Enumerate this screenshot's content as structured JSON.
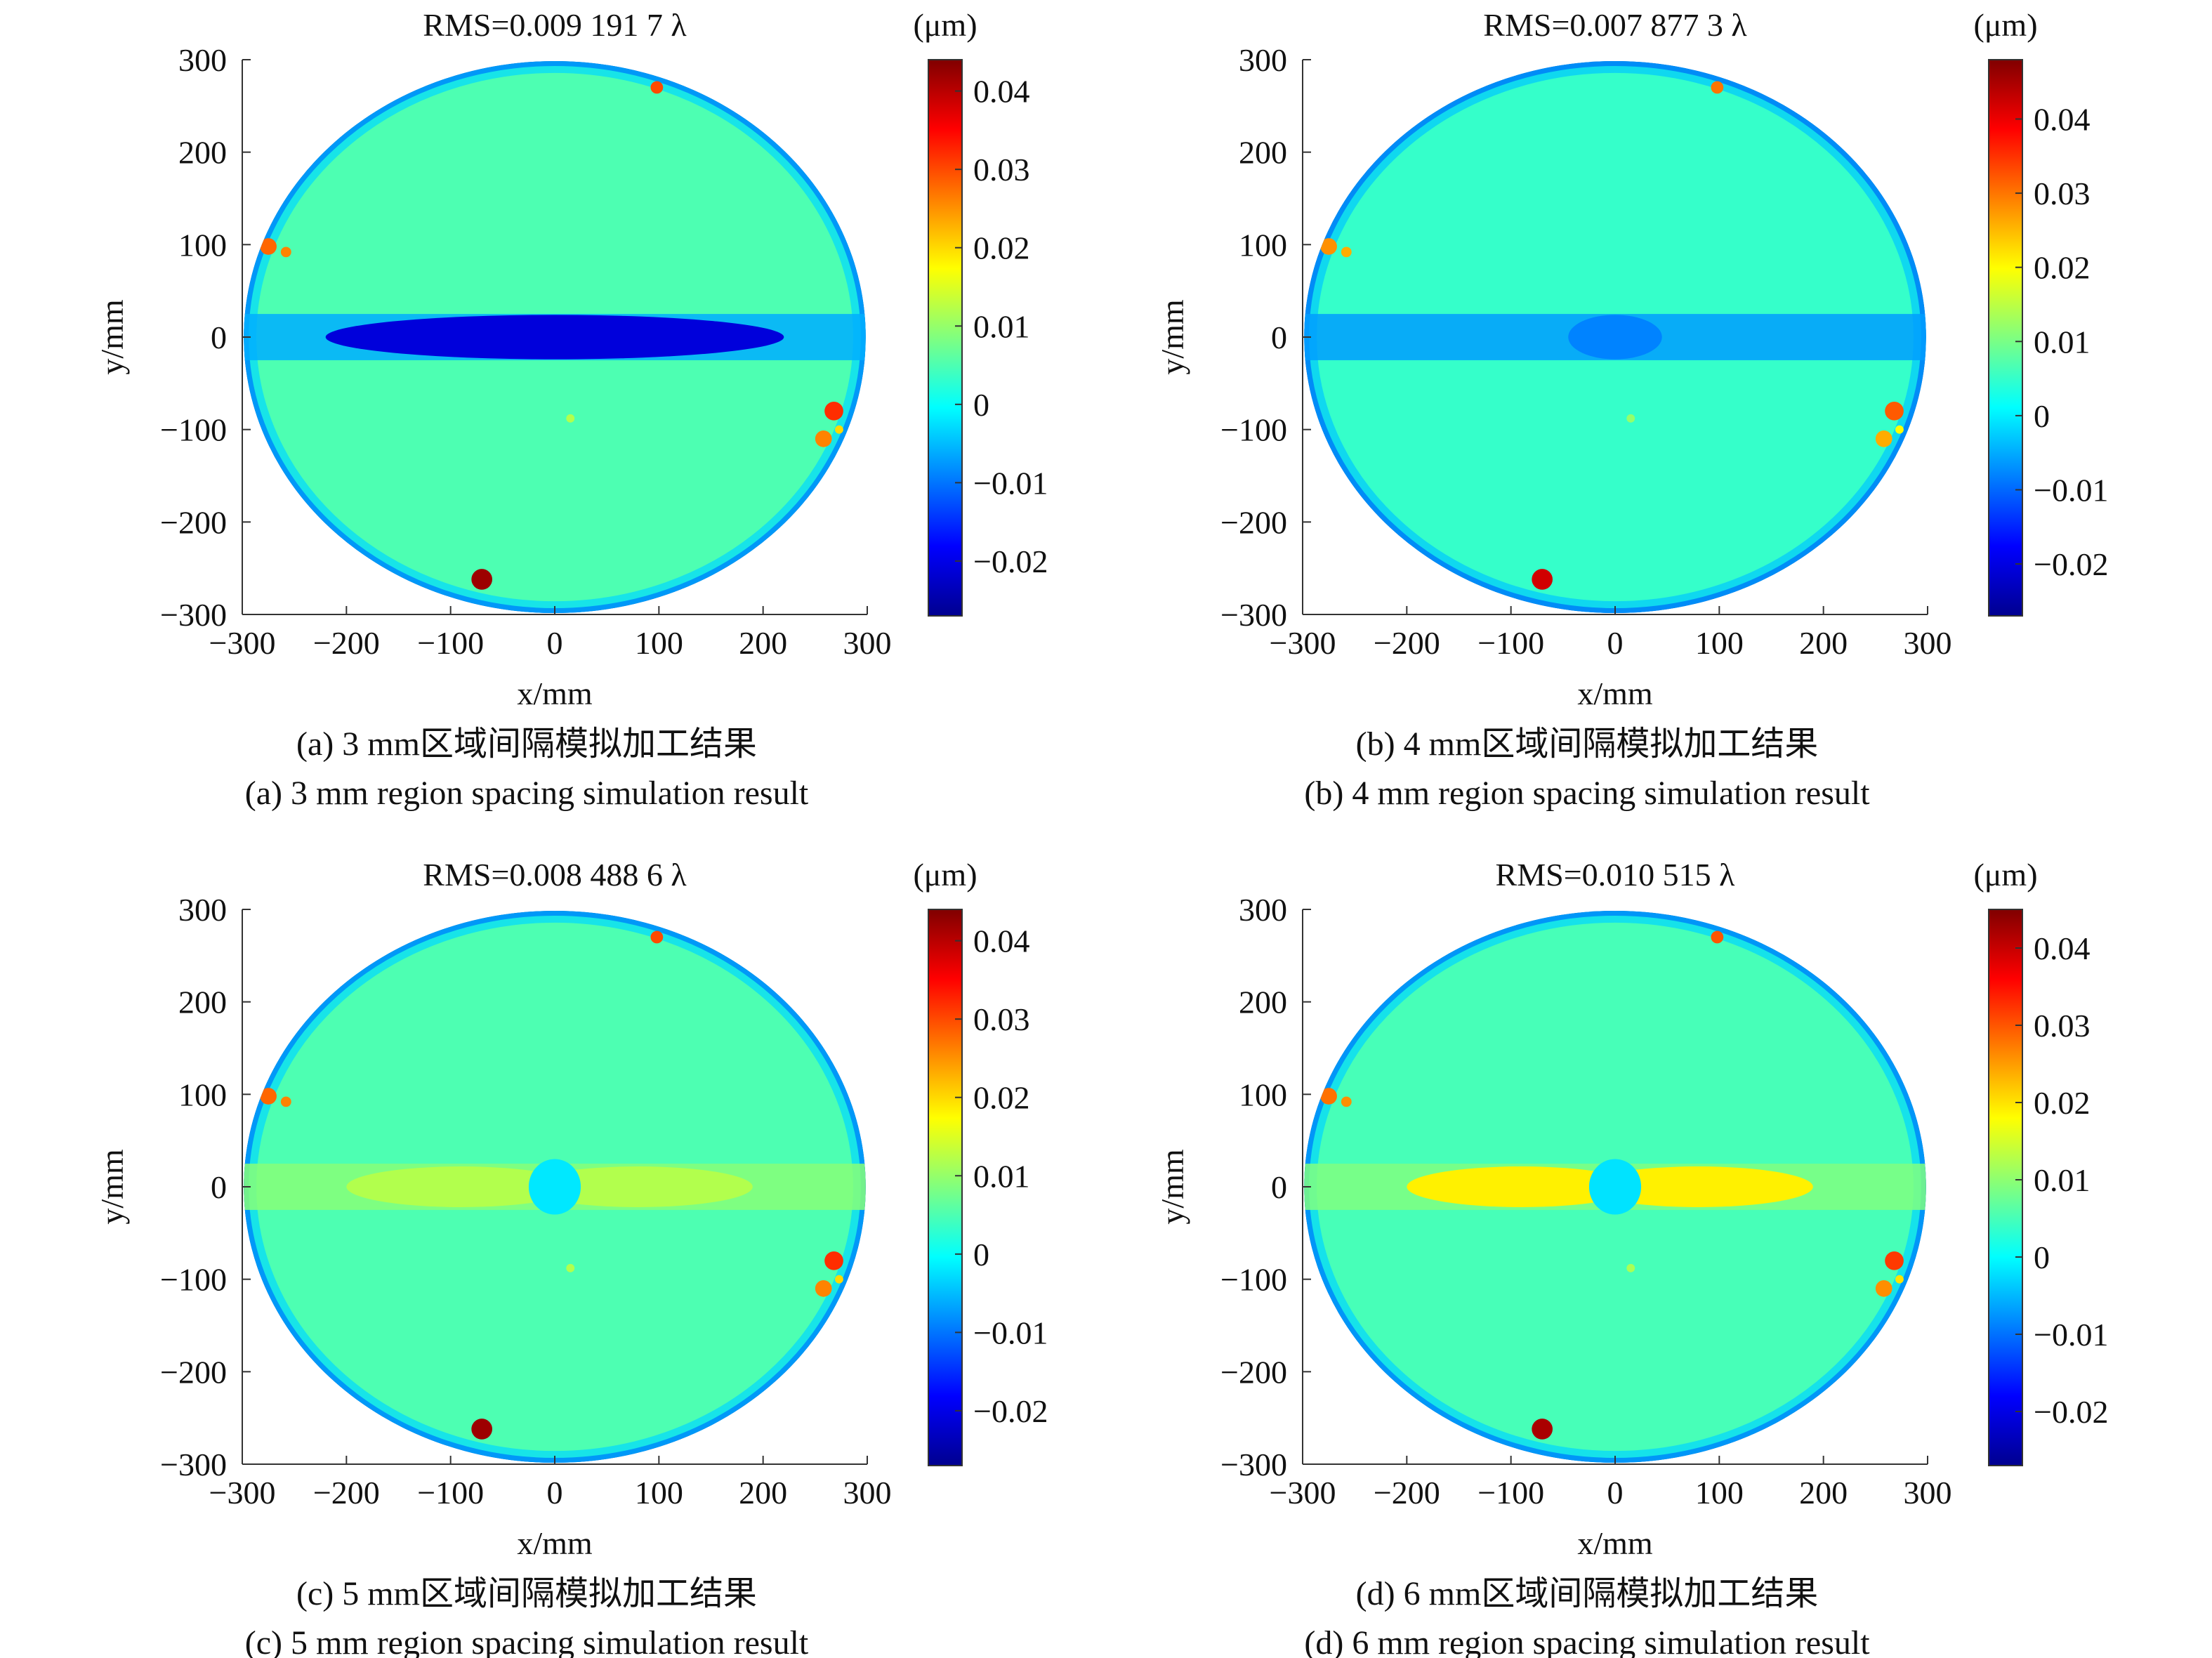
{
  "chart_data": [
    {
      "type": "heatmap",
      "title": "RMS=0.009 191 7 λ",
      "xlabel": "x/mm",
      "ylabel": "y/mm",
      "xlim": [
        -300,
        300
      ],
      "ylim": [
        -300,
        300
      ],
      "xticks": [
        -300,
        -200,
        -100,
        0,
        100,
        200,
        300
      ],
      "yticks": [
        300,
        200,
        100,
        0,
        -100,
        -200,
        -300
      ],
      "colorbar": {
        "unit": "(μm)",
        "range": [
          -0.027,
          0.044
        ],
        "ticks": [
          0.04,
          0.03,
          0.02,
          0.01,
          0,
          -0.01,
          -0.02
        ],
        "tick_labels": [
          "0.04",
          "0.03",
          "0.02",
          "0.01",
          "0",
          "−0.01",
          "−0.02"
        ]
      },
      "band_value": -0.021,
      "caption_cn": "(a) 3 mm区域间隔模拟加工结果",
      "caption_en": "(a) 3 mm region spacing simulation result"
    },
    {
      "type": "heatmap",
      "title": "RMS=0.007 877 3 λ",
      "xlabel": "x/mm",
      "ylabel": "y/mm",
      "xlim": [
        -300,
        300
      ],
      "ylim": [
        -300,
        300
      ],
      "xticks": [
        -300,
        -200,
        -100,
        0,
        100,
        200,
        300
      ],
      "yticks": [
        300,
        200,
        100,
        0,
        -100,
        -200,
        -300
      ],
      "colorbar": {
        "unit": "(μm)",
        "range": [
          -0.027,
          0.048
        ],
        "ticks": [
          0.04,
          0.03,
          0.02,
          0.01,
          0,
          -0.01,
          -0.02
        ],
        "tick_labels": [
          "0.04",
          "0.03",
          "0.02",
          "0.01",
          "0",
          "−0.01",
          "−0.02"
        ]
      },
      "band_value": -0.008,
      "caption_cn": "(b) 4 mm区域间隔模拟加工结果",
      "caption_en": "(b) 4 mm region spacing simulation result"
    },
    {
      "type": "heatmap",
      "title": "RMS=0.008 488 6 λ",
      "xlabel": "x/mm",
      "ylabel": "y/mm",
      "xlim": [
        -300,
        300
      ],
      "ylim": [
        -300,
        300
      ],
      "xticks": [
        -300,
        -200,
        -100,
        0,
        100,
        200,
        300
      ],
      "yticks": [
        300,
        200,
        100,
        0,
        -100,
        -200,
        -300
      ],
      "colorbar": {
        "unit": "(μm)",
        "range": [
          -0.027,
          0.044
        ],
        "ticks": [
          0.04,
          0.03,
          0.02,
          0.01,
          0,
          -0.01,
          -0.02
        ],
        "tick_labels": [
          "0.04",
          "0.03",
          "0.02",
          "0.01",
          "0",
          "−0.01",
          "−0.02"
        ]
      },
      "band_value": 0.012,
      "caption_cn": "(c) 5 mm区域间隔模拟加工结果",
      "caption_en": "(c) 5 mm region spacing simulation result"
    },
    {
      "type": "heatmap",
      "title": "RMS=0.010 515 λ",
      "xlabel": "x/mm",
      "ylabel": "y/mm",
      "xlim": [
        -300,
        300
      ],
      "ylim": [
        -300,
        300
      ],
      "xticks": [
        -300,
        -200,
        -100,
        0,
        100,
        200,
        300
      ],
      "yticks": [
        300,
        200,
        100,
        0,
        -100,
        -200,
        -300
      ],
      "colorbar": {
        "unit": "(μm)",
        "range": [
          -0.027,
          0.045
        ],
        "ticks": [
          0.04,
          0.03,
          0.02,
          0.01,
          0,
          -0.01,
          -0.02
        ],
        "tick_labels": [
          "0.04",
          "0.03",
          "0.02",
          "0.01",
          "0",
          "−0.01",
          "−0.02"
        ]
      },
      "band_value": 0.019,
      "caption_cn": "(d) 6 mm区域间隔模拟加工结果",
      "caption_en": "(d) 6 mm region spacing simulation result"
    }
  ]
}
